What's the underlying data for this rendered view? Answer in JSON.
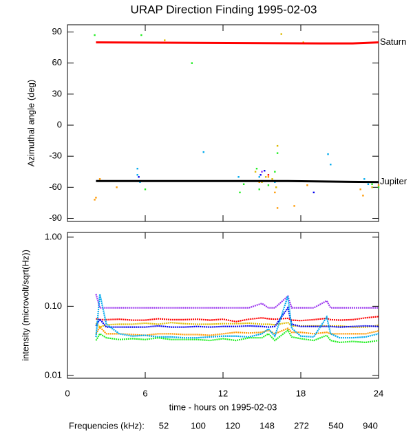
{
  "chart_data": [
    {
      "type": "scatter",
      "title": "URAP Direction Finding  1995-02-03",
      "ylabel": "Azimuthal angle (deg)",
      "xlim": [
        0,
        24
      ],
      "ylim": [
        -93,
        97
      ],
      "yticks": [
        -90,
        -60,
        -30,
        0,
        30,
        60,
        90
      ],
      "legend_title": "Frequencies (kHz):",
      "series": [
        {
          "name": "52",
          "color": "#ff0000",
          "x": [
            15.5
          ],
          "values": [
            -48
          ]
        },
        {
          "name": "100",
          "color": "#ff9900",
          "x": [
            2.1,
            2.2,
            2.5,
            3.8,
            14.8,
            15.5,
            16,
            16.2,
            17.5,
            18.5,
            22.6,
            22.8,
            24
          ],
          "values": [
            -72,
            -70,
            -52,
            -60,
            -55,
            -50,
            -65,
            -80,
            -78,
            -58,
            -62,
            -68,
            -58
          ]
        },
        {
          "name": "120",
          "color": "#ddbb00",
          "x": [
            7.5,
            14.5,
            15,
            15.3,
            15.8,
            16.2,
            16.5,
            16.1,
            18.2,
            23.5
          ],
          "values": [
            82,
            -45,
            -55,
            -50,
            -52,
            -20,
            88,
            -60,
            80,
            -60
          ]
        },
        {
          "name": "148",
          "color": "#22ee22",
          "x": [
            2.1,
            5.7,
            9.6,
            6,
            13.3,
            13.6,
            14.6,
            14.8,
            15.5,
            16,
            16.2,
            23.5,
            23.8,
            24
          ],
          "values": [
            87,
            87,
            60,
            -62,
            -65,
            -57,
            -42,
            -62,
            -58,
            -45,
            -27,
            -57,
            -55,
            -60
          ]
        },
        {
          "name": "272",
          "color": "#00aaee",
          "x": [
            5.4,
            5.4,
            5.6,
            10.5,
            13.2,
            14.8,
            16,
            20.1,
            20.3,
            22.9,
            23.2
          ],
          "values": [
            -42,
            -48,
            -55,
            -26,
            -50,
            -50,
            -55,
            -28,
            -38,
            -52,
            -57
          ]
        },
        {
          "name": "540",
          "color": "#0000ee",
          "x": [
            5.5,
            14.9,
            19,
            15.2
          ],
          "values": [
            -50,
            -48,
            -65,
            -44
          ]
        },
        {
          "name": "940",
          "color": "#9933ee",
          "x": [
            15,
            23.3
          ],
          "values": [
            -45,
            -55
          ]
        }
      ],
      "reference_lines": [
        {
          "name": "Saturn",
          "color": "#ff0000",
          "x": [
            2.2,
            19.5,
            22,
            24
          ],
          "values": [
            80,
            79,
            79,
            80
          ]
        },
        {
          "name": "Jupiter",
          "color": "#000000",
          "x": [
            2.2,
            17,
            24
          ],
          "values": [
            -54,
            -54,
            -55
          ]
        }
      ]
    },
    {
      "type": "line",
      "log_scale": true,
      "ylabel": "intensity (microvolt/sqrt(Hz))",
      "xlabel": "time - hours on 1995-02-03",
      "xlim": [
        0,
        24
      ],
      "xticks": [
        0,
        6,
        12,
        18,
        24
      ],
      "ylim": [
        0.0091,
        1.17
      ],
      "yticks": [
        {
          "value": 0.01,
          "label": "0.01"
        },
        {
          "value": 0.1,
          "label": "0.10"
        },
        {
          "value": 1,
          "label": "1.00"
        }
      ],
      "x": [
        2.2,
        2.5,
        3,
        4,
        5,
        6,
        7,
        8,
        9,
        10,
        11,
        12,
        13,
        14,
        15,
        15.5,
        16,
        17,
        17.3,
        18,
        19,
        20,
        20.3,
        21,
        22,
        23,
        24
      ],
      "series": [
        {
          "color": "#9933ee",
          "values": [
            0.15,
            0.095,
            0.095,
            0.095,
            0.095,
            0.095,
            0.095,
            0.095,
            0.095,
            0.095,
            0.095,
            0.095,
            0.095,
            0.095,
            0.11,
            0.095,
            0.095,
            0.14,
            0.095,
            0.095,
            0.095,
            0.12,
            0.095,
            0.095,
            0.095,
            0.095,
            0.095
          ]
        },
        {
          "color": "#ff0000",
          "values": [
            0.066,
            0.064,
            0.064,
            0.065,
            0.063,
            0.063,
            0.066,
            0.064,
            0.064,
            0.065,
            0.063,
            0.065,
            0.06,
            0.065,
            0.068,
            0.066,
            0.065,
            0.067,
            0.063,
            0.062,
            0.064,
            0.067,
            0.064,
            0.063,
            0.064,
            0.068,
            0.071
          ]
        },
        {
          "color": "#ddbb00",
          "values": [
            0.057,
            0.05,
            0.054,
            0.055,
            0.055,
            0.057,
            0.055,
            0.058,
            0.056,
            0.055,
            0.055,
            0.056,
            0.056,
            0.057,
            0.055,
            0.055,
            0.054,
            0.058,
            0.052,
            0.052,
            0.052,
            0.052,
            0.052,
            0.052,
            0.05,
            0.05,
            0.053
          ]
        },
        {
          "color": "#0000ee",
          "values": [
            0.052,
            0.065,
            0.05,
            0.05,
            0.05,
            0.05,
            0.052,
            0.05,
            0.05,
            0.051,
            0.05,
            0.051,
            0.051,
            0.052,
            0.051,
            0.05,
            0.051,
            0.095,
            0.055,
            0.051,
            0.051,
            0.051,
            0.051,
            0.05,
            0.051,
            0.052,
            0.051
          ]
        },
        {
          "color": "#ff9900",
          "values": [
            0.04,
            0.05,
            0.04,
            0.04,
            0.039,
            0.038,
            0.04,
            0.04,
            0.039,
            0.039,
            0.038,
            0.04,
            0.042,
            0.041,
            0.042,
            0.045,
            0.04,
            0.048,
            0.042,
            0.042,
            0.04,
            0.042,
            0.04,
            0.04,
            0.04,
            0.04,
            0.044
          ]
        },
        {
          "color": "#00aaee",
          "values": [
            0.036,
            0.15,
            0.055,
            0.04,
            0.037,
            0.038,
            0.036,
            0.036,
            0.035,
            0.035,
            0.036,
            0.037,
            0.037,
            0.036,
            0.04,
            0.047,
            0.037,
            0.14,
            0.048,
            0.037,
            0.036,
            0.07,
            0.04,
            0.035,
            0.035,
            0.036,
            0.04
          ]
        },
        {
          "color": "#22ee22",
          "values": [
            0.032,
            0.04,
            0.035,
            0.033,
            0.034,
            0.033,
            0.035,
            0.033,
            0.033,
            0.033,
            0.032,
            0.034,
            0.032,
            0.035,
            0.035,
            0.04,
            0.032,
            0.045,
            0.036,
            0.034,
            0.032,
            0.038,
            0.032,
            0.03,
            0.031,
            0.03,
            0.032
          ]
        }
      ]
    }
  ]
}
